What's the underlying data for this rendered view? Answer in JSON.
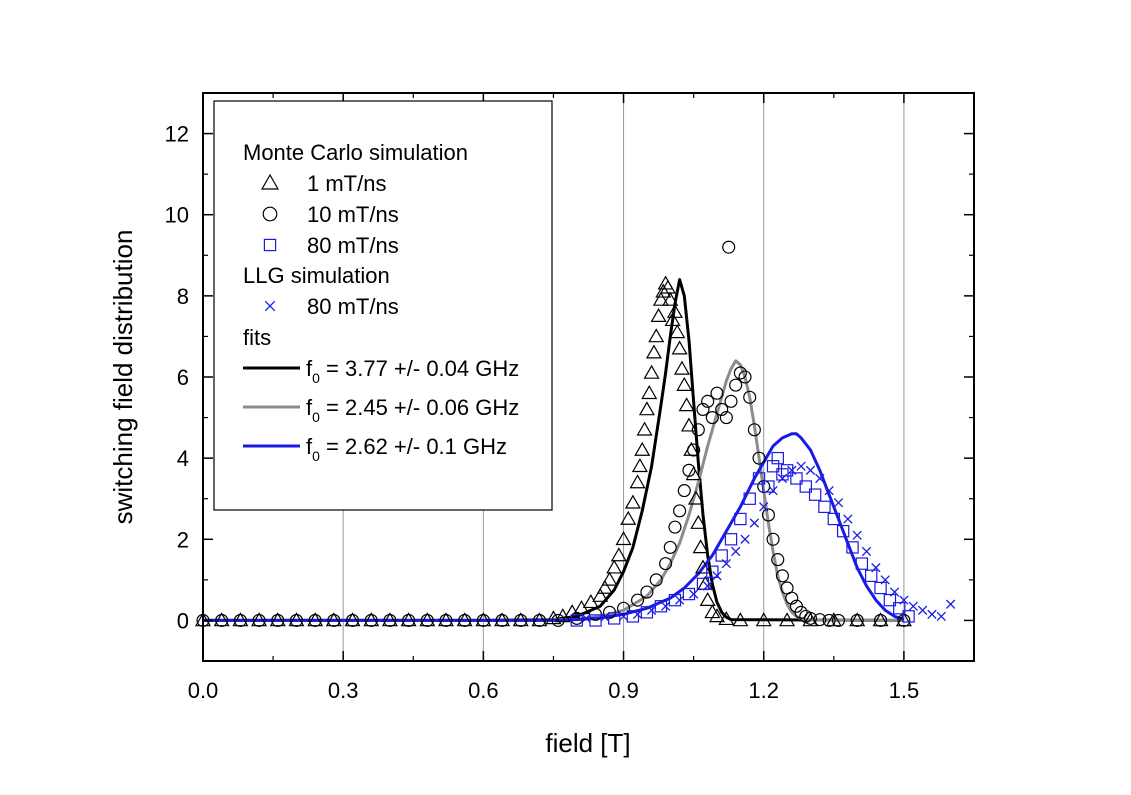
{
  "chart_data": {
    "type": "scatter",
    "xlabel": "field [T]",
    "ylabel": "switching field distribution",
    "xlim": [
      0.0,
      1.65
    ],
    "ylim": [
      -1.0,
      13.0
    ],
    "xticks": [
      0.0,
      0.3,
      0.6,
      0.9,
      1.2,
      1.5
    ],
    "yticks": [
      0,
      2,
      4,
      6,
      8,
      10,
      12
    ],
    "x_tick_labels": [
      "0.0",
      "0.3",
      "0.6",
      "0.9",
      "1.2",
      "1.5"
    ],
    "y_tick_labels": [
      "0",
      "2",
      "4",
      "6",
      "8",
      "10",
      "12"
    ],
    "vertical_gridlines": [
      0.3,
      0.6,
      0.9,
      1.2,
      1.5
    ],
    "legend_position": "top-left",
    "colors": {
      "black": "#000000",
      "gray": "#8c8c8c",
      "blue": "#1a1ae6",
      "grid": "#999999"
    },
    "legend": {
      "group1": "Monte Carlo simulation",
      "mc1": "1 mT/ns",
      "mc10": "10 mT/ns",
      "mc80": "80 mT/ns",
      "group2": "LLG simulation",
      "llg80": "80 mT/ns",
      "group3": "fits",
      "fit1_prefix": "f",
      "fit1_sub": "0",
      "fit1_suffix": " = 3.77 +/- 0.04 GHz",
      "fit2_prefix": "f",
      "fit2_sub": "0",
      "fit2_suffix": " = 2.45 +/- 0.06 GHz",
      "fit3_prefix": "f",
      "fit3_sub": "0",
      "fit3_suffix": " = 2.62 +/- 0.1 GHz"
    },
    "series": [
      {
        "name": "1 mT/ns",
        "kind": "markers",
        "marker": "triangle",
        "color": "#000000",
        "x": [
          0.0,
          0.04,
          0.08,
          0.12,
          0.16,
          0.2,
          0.24,
          0.28,
          0.32,
          0.36,
          0.4,
          0.44,
          0.48,
          0.52,
          0.56,
          0.6,
          0.64,
          0.68,
          0.72,
          0.75,
          0.77,
          0.79,
          0.81,
          0.83,
          0.85,
          0.86,
          0.87,
          0.88,
          0.89,
          0.9,
          0.91,
          0.92,
          0.93,
          0.935,
          0.94,
          0.945,
          0.95,
          0.955,
          0.96,
          0.965,
          0.97,
          0.975,
          0.98,
          0.985,
          0.99,
          0.995,
          1.0,
          1.005,
          1.01,
          1.015,
          1.02,
          1.025,
          1.03,
          1.035,
          1.04,
          1.045,
          1.05,
          1.055,
          1.06,
          1.065,
          1.07,
          1.075,
          1.08,
          1.09,
          1.1,
          1.12,
          1.15,
          1.2,
          1.25,
          1.3,
          1.35,
          1.4,
          1.45,
          1.5
        ],
        "y": [
          0,
          0,
          0,
          0,
          0,
          0,
          0,
          0,
          0,
          0,
          0,
          0,
          0,
          0,
          0,
          0,
          0,
          0,
          0,
          0.05,
          0.1,
          0.2,
          0.3,
          0.45,
          0.6,
          0.8,
          1.0,
          1.3,
          1.6,
          2.0,
          2.5,
          2.9,
          3.4,
          3.8,
          4.2,
          4.7,
          5.2,
          5.6,
          6.1,
          6.6,
          7.0,
          7.5,
          7.9,
          8.1,
          8.3,
          8.2,
          7.9,
          7.4,
          7.6,
          7.1,
          6.7,
          6.2,
          5.8,
          5.3,
          4.8,
          4.2,
          3.6,
          3.0,
          2.4,
          1.8,
          1.3,
          0.9,
          0.5,
          0.2,
          0.1,
          0.03,
          0,
          0,
          0,
          0,
          0,
          0,
          0,
          0
        ]
      },
      {
        "name": "10 mT/ns",
        "kind": "markers",
        "marker": "circle",
        "color": "#000000",
        "x": [
          0.0,
          0.04,
          0.08,
          0.12,
          0.16,
          0.2,
          0.24,
          0.28,
          0.32,
          0.36,
          0.4,
          0.44,
          0.48,
          0.52,
          0.56,
          0.6,
          0.64,
          0.68,
          0.72,
          0.76,
          0.8,
          0.84,
          0.87,
          0.9,
          0.93,
          0.95,
          0.97,
          0.99,
          1.0,
          1.01,
          1.02,
          1.03,
          1.04,
          1.05,
          1.06,
          1.07,
          1.08,
          1.09,
          1.1,
          1.11,
          1.12,
          1.125,
          1.13,
          1.14,
          1.15,
          1.16,
          1.17,
          1.18,
          1.19,
          1.2,
          1.21,
          1.22,
          1.23,
          1.24,
          1.25,
          1.26,
          1.27,
          1.28,
          1.29,
          1.3,
          1.32,
          1.34,
          1.36,
          1.4,
          1.45,
          1.5
        ],
        "y": [
          0,
          0,
          0,
          0,
          0,
          0,
          0,
          0,
          0,
          0,
          0,
          0,
          0,
          0,
          0,
          0,
          0,
          0,
          0,
          0,
          0.05,
          0.15,
          0.2,
          0.3,
          0.5,
          0.7,
          1.0,
          1.4,
          1.8,
          2.3,
          2.7,
          3.2,
          3.7,
          4.2,
          4.7,
          5.2,
          5.4,
          5.0,
          5.6,
          5.2,
          5.0,
          9.2,
          5.4,
          5.8,
          6.1,
          6.0,
          5.5,
          4.7,
          4.0,
          3.3,
          2.6,
          2.0,
          1.5,
          1.1,
          0.8,
          0.55,
          0.35,
          0.2,
          0.1,
          0.05,
          0.02,
          0,
          0,
          0,
          0,
          0
        ]
      },
      {
        "name": "80 mT/ns",
        "kind": "markers",
        "marker": "square",
        "color": "#1a1ae6",
        "x": [
          0.8,
          0.84,
          0.88,
          0.92,
          0.95,
          0.98,
          1.01,
          1.04,
          1.07,
          1.09,
          1.11,
          1.13,
          1.15,
          1.17,
          1.19,
          1.21,
          1.22,
          1.23,
          1.24,
          1.25,
          1.27,
          1.29,
          1.31,
          1.33,
          1.35,
          1.37,
          1.39,
          1.41,
          1.43,
          1.45,
          1.47,
          1.49,
          1.51
        ],
        "y": [
          0.0,
          0.0,
          0.05,
          0.1,
          0.2,
          0.35,
          0.5,
          0.65,
          0.9,
          1.2,
          1.6,
          2.0,
          2.5,
          3.0,
          3.5,
          3.3,
          3.8,
          4.0,
          3.6,
          3.7,
          3.5,
          3.3,
          3.1,
          2.8,
          2.5,
          2.2,
          1.8,
          1.4,
          1.1,
          0.8,
          0.5,
          0.3,
          0.1
        ]
      },
      {
        "name": "80 mT/ns",
        "kind": "markers",
        "marker": "cross",
        "color": "#1a1ae6",
        "x": [
          0.82,
          0.86,
          0.9,
          0.93,
          0.96,
          0.99,
          1.02,
          1.05,
          1.08,
          1.1,
          1.12,
          1.14,
          1.16,
          1.18,
          1.2,
          1.22,
          1.24,
          1.26,
          1.28,
          1.3,
          1.32,
          1.34,
          1.36,
          1.38,
          1.4,
          1.42,
          1.44,
          1.46,
          1.48,
          1.5,
          1.52,
          1.54,
          1.56,
          1.58,
          1.6
        ],
        "y": [
          0.05,
          0.08,
          0.1,
          0.15,
          0.25,
          0.35,
          0.5,
          0.65,
          0.85,
          1.1,
          1.4,
          1.7,
          2.0,
          2.4,
          2.8,
          3.2,
          3.5,
          3.7,
          3.8,
          3.7,
          3.5,
          3.2,
          2.9,
          2.5,
          2.1,
          1.7,
          1.3,
          1.0,
          0.7,
          0.5,
          0.35,
          0.25,
          0.15,
          0.1,
          0.4
        ]
      },
      {
        "name": "f0 = 3.77 +/- 0.04 GHz",
        "kind": "line",
        "color": "#000000",
        "x": [
          0.0,
          0.6,
          0.75,
          0.8,
          0.85,
          0.88,
          0.9,
          0.92,
          0.94,
          0.96,
          0.98,
          0.99,
          1.0,
          1.01,
          1.02,
          1.03,
          1.04,
          1.05,
          1.06,
          1.07,
          1.08,
          1.09,
          1.1,
          1.11,
          1.12,
          1.13,
          1.5
        ],
        "y": [
          0,
          0,
          0.02,
          0.1,
          0.35,
          0.75,
          1.2,
          1.8,
          2.7,
          3.8,
          5.3,
          6.1,
          7.0,
          7.8,
          8.4,
          8.0,
          6.9,
          5.4,
          3.9,
          2.6,
          1.6,
          0.9,
          0.45,
          0.2,
          0.08,
          0.02,
          0
        ]
      },
      {
        "name": "f0 = 2.45 +/- 0.06 GHz",
        "kind": "line",
        "color": "#8c8c8c",
        "x": [
          0.0,
          0.7,
          0.8,
          0.85,
          0.9,
          0.95,
          0.98,
          1.0,
          1.02,
          1.04,
          1.06,
          1.08,
          1.1,
          1.12,
          1.13,
          1.14,
          1.15,
          1.16,
          1.17,
          1.18,
          1.19,
          1.2,
          1.21,
          1.22,
          1.23,
          1.24,
          1.25,
          1.26,
          1.27,
          1.28,
          1.3,
          1.5
        ],
        "y": [
          0,
          0,
          0.03,
          0.1,
          0.25,
          0.6,
          1.0,
          1.4,
          1.9,
          2.6,
          3.4,
          4.3,
          5.1,
          5.9,
          6.2,
          6.4,
          6.3,
          6.0,
          5.5,
          4.8,
          4.0,
          3.2,
          2.4,
          1.7,
          1.1,
          0.7,
          0.4,
          0.2,
          0.1,
          0.04,
          0.01,
          0
        ]
      },
      {
        "name": "f0 = 2.62 +/- 0.1 GHz",
        "kind": "line",
        "color": "#1a1ae6",
        "x": [
          0.0,
          0.75,
          0.8,
          0.85,
          0.9,
          0.95,
          1.0,
          1.03,
          1.06,
          1.09,
          1.12,
          1.15,
          1.18,
          1.2,
          1.22,
          1.24,
          1.26,
          1.27,
          1.28,
          1.3,
          1.32,
          1.34,
          1.36,
          1.38,
          1.4,
          1.42,
          1.44,
          1.46,
          1.48,
          1.5
        ],
        "y": [
          0,
          0,
          0.02,
          0.06,
          0.15,
          0.3,
          0.55,
          0.8,
          1.15,
          1.6,
          2.2,
          2.8,
          3.5,
          3.9,
          4.3,
          4.5,
          4.6,
          4.6,
          4.5,
          4.2,
          3.7,
          3.1,
          2.5,
          1.9,
          1.3,
          0.85,
          0.5,
          0.25,
          0.1,
          0.02
        ]
      }
    ]
  }
}
